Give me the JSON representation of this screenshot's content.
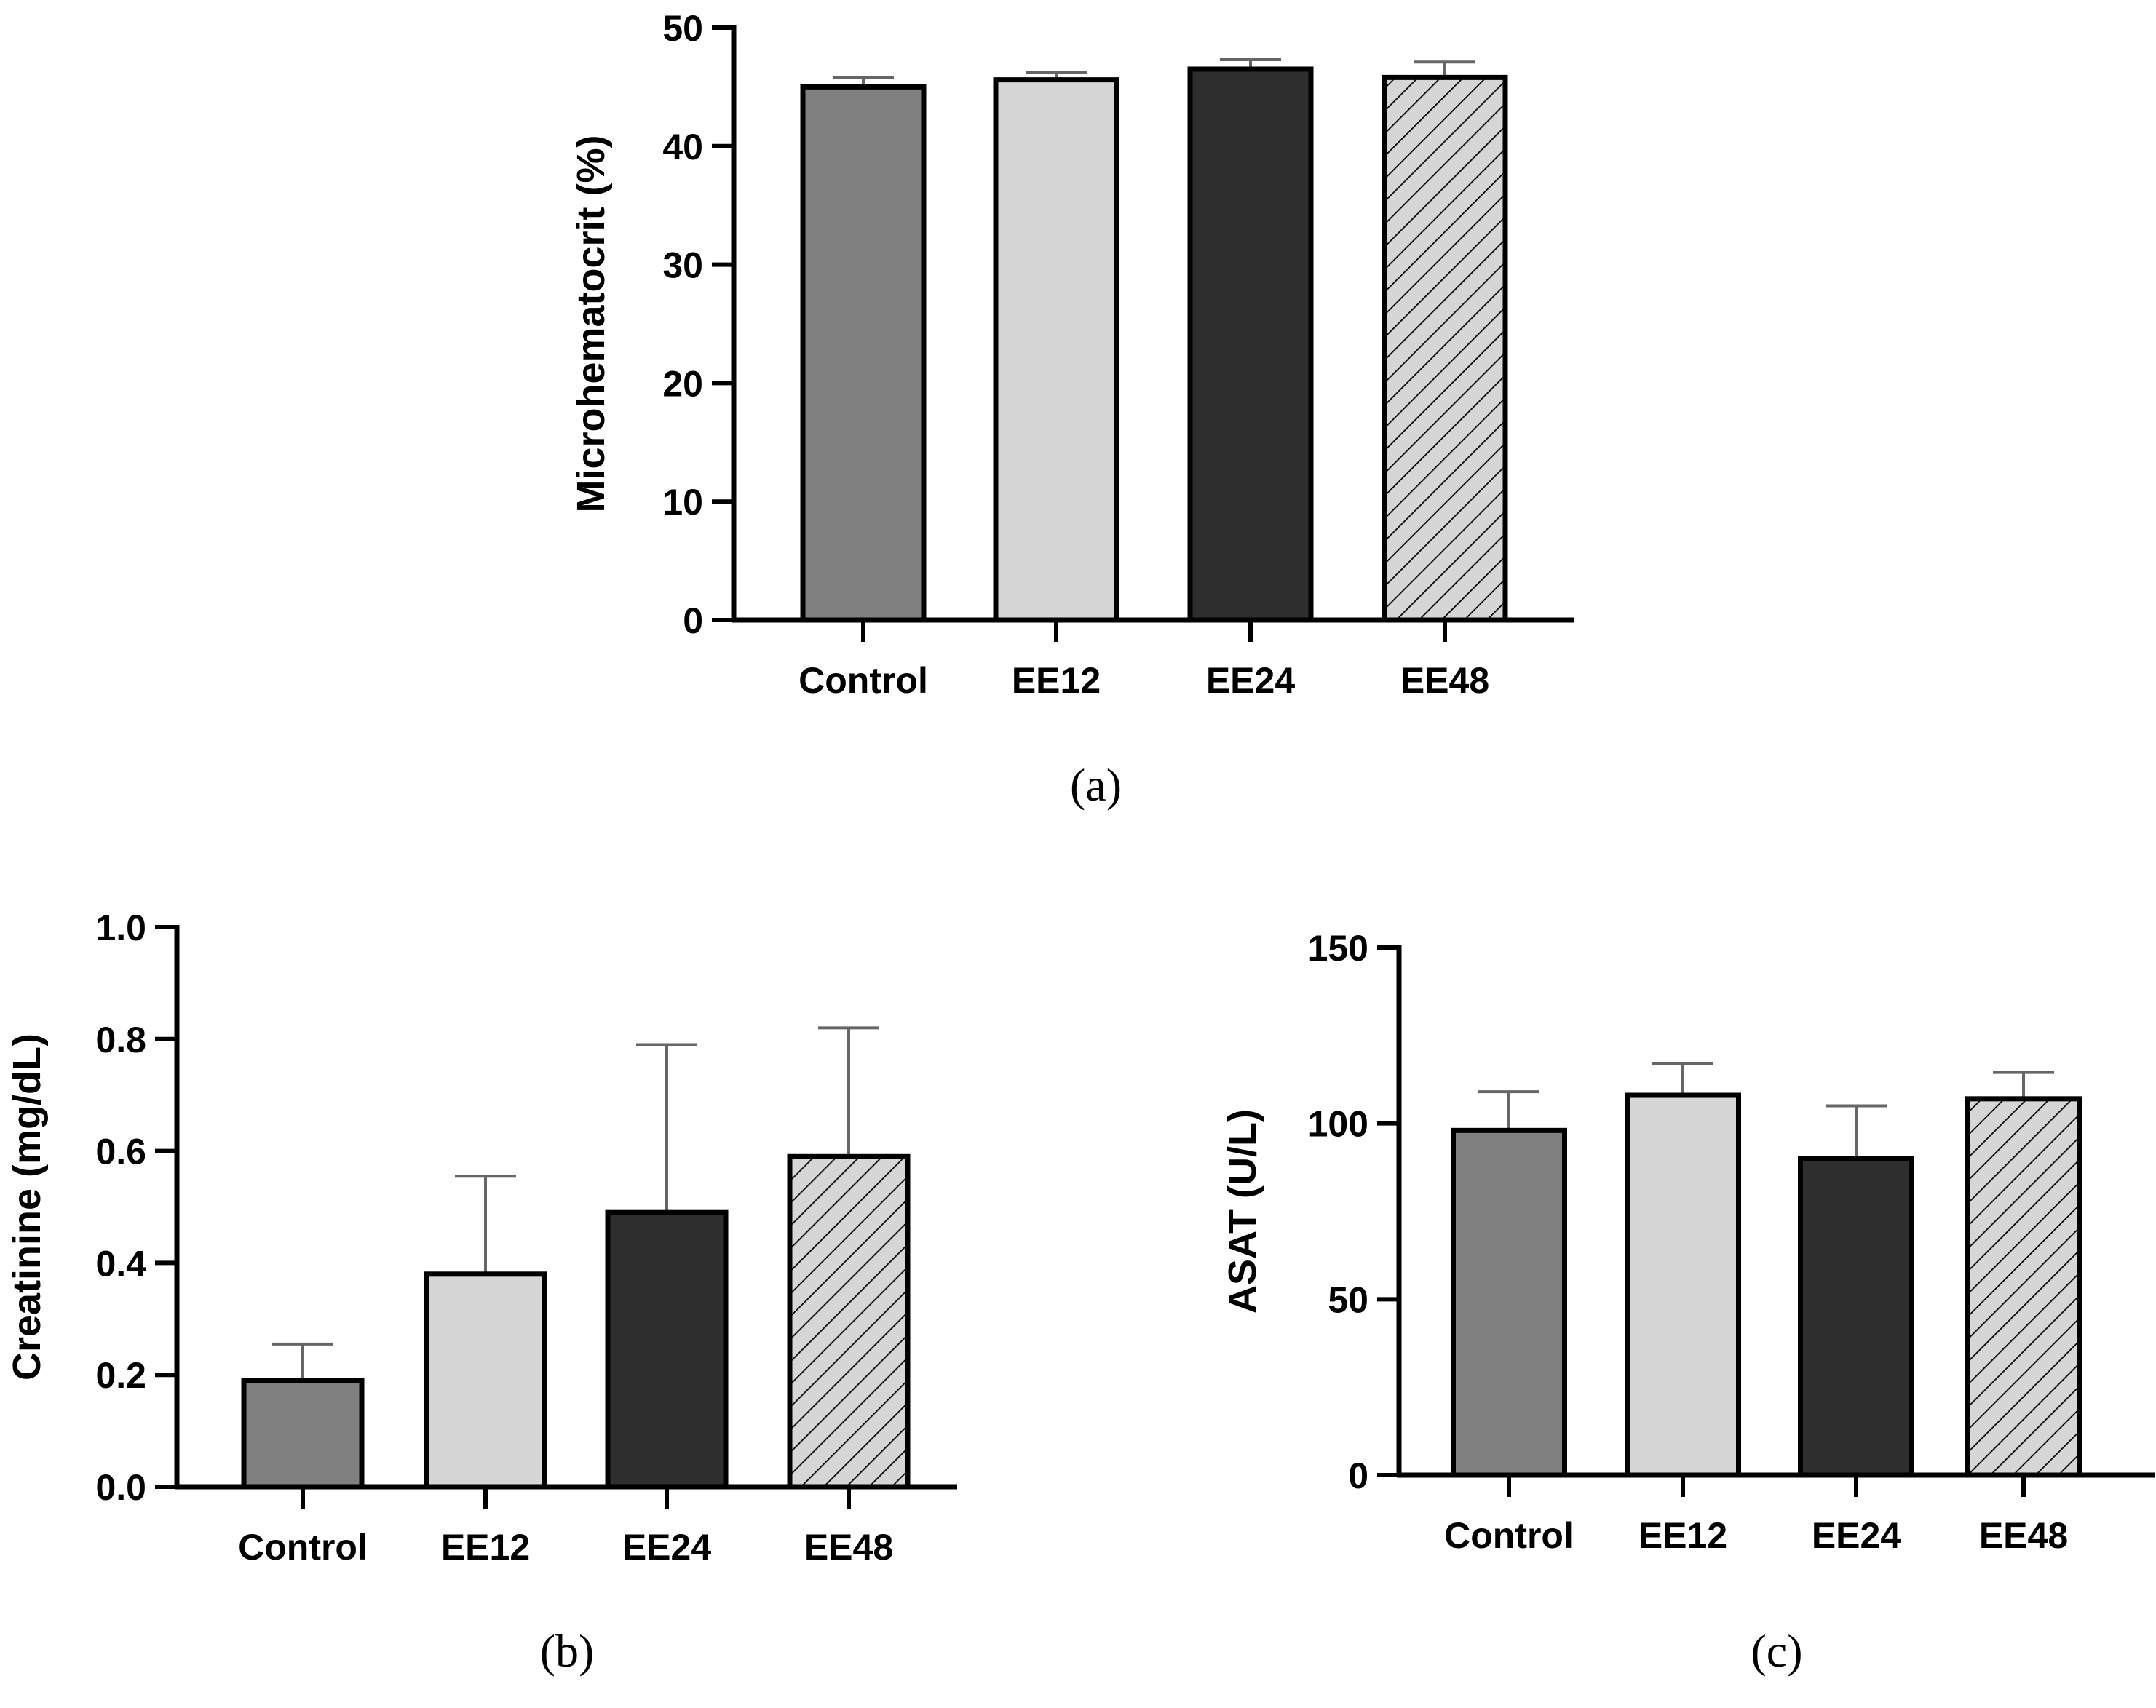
{
  "colors": {
    "Control": "#808080",
    "EE12": "#d6d6d6",
    "EE24": "#2e2e2e",
    "EE48": "hatch",
    "hatch_bg": "#d6d6d6",
    "outline": "#000000",
    "errorbar": "#666666"
  },
  "chart_data": [
    {
      "id": "a",
      "type": "bar",
      "panel_label": "(a)",
      "ylabel": "Microhematocrit (%)",
      "xlabel": "",
      "categories": [
        "Control",
        "EE12",
        "EE24",
        "EE48"
      ],
      "values": [
        45.0,
        45.6,
        46.5,
        45.8
      ],
      "errors": [
        0.8,
        0.6,
        0.8,
        1.3
      ],
      "ylim": [
        0,
        50
      ],
      "yticks": [
        0,
        10,
        20,
        30,
        40,
        50
      ],
      "ytick_labels": [
        "0",
        "10",
        "20",
        "30",
        "40",
        "50"
      ],
      "grid": false
    },
    {
      "id": "b",
      "type": "bar",
      "panel_label": "(b)",
      "ylabel": "Creatinine (mg/dL)",
      "xlabel": "",
      "categories": [
        "Control",
        "EE12",
        "EE24",
        "EE48"
      ],
      "values": [
        0.19,
        0.38,
        0.49,
        0.59
      ],
      "errors": [
        0.065,
        0.175,
        0.3,
        0.23
      ],
      "ylim": [
        0,
        1.0
      ],
      "yticks": [
        0,
        0.2,
        0.4,
        0.6,
        0.8,
        1.0
      ],
      "ytick_labels": [
        "0.0",
        "0.2",
        "0.4",
        "0.6",
        "0.8",
        "1.0"
      ],
      "grid": false
    },
    {
      "id": "c",
      "type": "bar",
      "panel_label": "(c)",
      "ylabel": "ASAT (U/L)",
      "xlabel": "",
      "categories": [
        "Control",
        "EE12",
        "EE24",
        "EE48"
      ],
      "values": [
        98,
        108,
        90,
        107
      ],
      "errors": [
        11,
        9,
        15,
        7.5
      ],
      "ylim": [
        0,
        150
      ],
      "yticks": [
        0,
        50,
        100,
        150
      ],
      "ytick_labels": [
        "0",
        "50",
        "100",
        "150"
      ],
      "grid": false
    }
  ]
}
